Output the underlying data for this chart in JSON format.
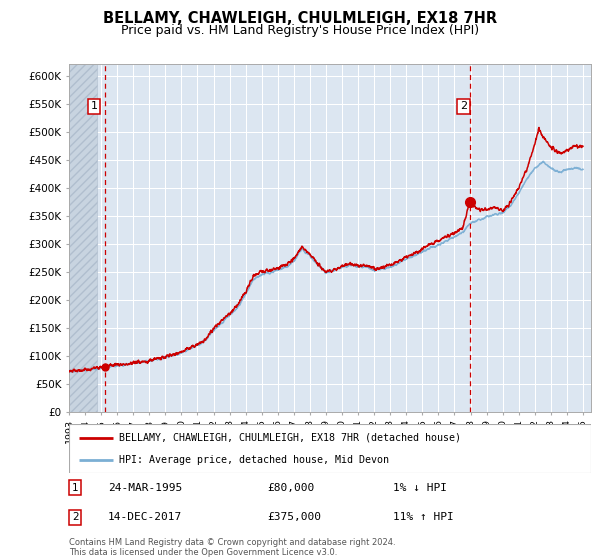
{
  "title": "BELLAMY, CHAWLEIGH, CHULMLEIGH, EX18 7HR",
  "subtitle": "Price paid vs. HM Land Registry's House Price Index (HPI)",
  "title_fontsize": 10.5,
  "subtitle_fontsize": 9,
  "background_color": "#ffffff",
  "plot_bg_color": "#dce6f1",
  "ylim": [
    0,
    620000
  ],
  "yticks": [
    0,
    50000,
    100000,
    150000,
    200000,
    250000,
    300000,
    350000,
    400000,
    450000,
    500000,
    550000,
    600000
  ],
  "x_start_year": 1993,
  "x_end_year": 2025,
  "hpi_color": "#7bafd4",
  "price_color": "#cc0000",
  "marker_color": "#cc0000",
  "vline_color": "#cc0000",
  "annotation1_year": 1995.23,
  "annotation1_value": 80000,
  "annotation2_year": 2017.95,
  "annotation2_value": 375000,
  "legend_line1": "BELLAMY, CHAWLEIGH, CHULMLEIGH, EX18 7HR (detached house)",
  "legend_line2": "HPI: Average price, detached house, Mid Devon",
  "note1_label": "1",
  "note1_date": "24-MAR-1995",
  "note1_price": "£80,000",
  "note1_hpi": "1% ↓ HPI",
  "note2_label": "2",
  "note2_date": "14-DEC-2017",
  "note2_price": "£375,000",
  "note2_hpi": "11% ↑ HPI",
  "footer": "Contains HM Land Registry data © Crown copyright and database right 2024.\nThis data is licensed under the Open Government Licence v3.0."
}
